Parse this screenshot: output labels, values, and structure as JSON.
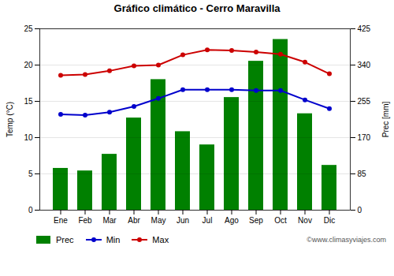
{
  "chart_data": {
    "type": "bar",
    "title": "Gráfico climático - Cerro Maravilla",
    "categories": [
      "Ene",
      "Feb",
      "Mar",
      "Abr",
      "May",
      "Jun",
      "Jul",
      "Ago",
      "Sep",
      "Oct",
      "Nov",
      "Dic"
    ],
    "series": [
      {
        "name": "Prec",
        "type": "bar",
        "axis": "y2",
        "color": "#008000",
        "values": [
          98,
          92,
          131,
          216,
          306,
          184,
          153,
          264,
          349,
          400,
          226,
          105
        ]
      },
      {
        "name": "Min",
        "type": "line",
        "color": "#0000cc",
        "marker": "circle",
        "values": [
          13.2,
          13.1,
          13.5,
          14.3,
          15.4,
          16.6,
          16.6,
          16.6,
          16.5,
          16.5,
          15.2,
          14.0
        ]
      },
      {
        "name": "Max",
        "type": "line",
        "color": "#cc0000",
        "marker": "circle",
        "values": [
          18.6,
          18.7,
          19.2,
          19.9,
          20.0,
          21.4,
          22.1,
          22.0,
          21.8,
          21.5,
          20.4,
          18.8
        ]
      }
    ],
    "ylabel": "Temp (°C)",
    "y2label": "Prec [mm]",
    "ylim": [
      0,
      25
    ],
    "yticks": [
      0,
      5,
      10,
      15,
      20,
      25
    ],
    "y2lim": [
      0,
      425
    ],
    "y2ticks": [
      0,
      85,
      170,
      255,
      340,
      425
    ],
    "grid": true,
    "legend": "bottom",
    "annotations": [
      "©www.climasyviajes.com"
    ]
  }
}
